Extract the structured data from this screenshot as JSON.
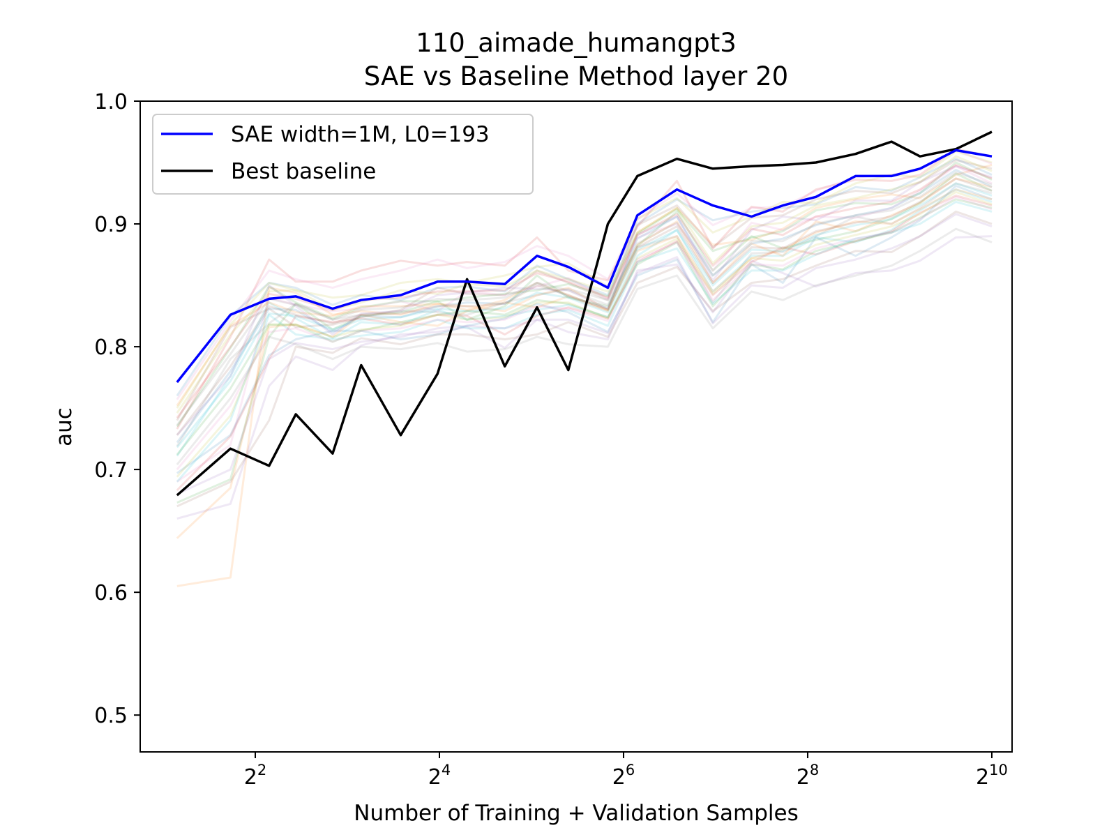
{
  "chart_data": {
    "type": "line",
    "title": "110_aimade_humangpt3",
    "subtitle": "SAE vs Baseline Method layer 20",
    "xlabel": "Number of Training + Validation Samples",
    "ylabel": "auc",
    "xscale": "log2",
    "xlim_log2": [
      0.75,
      10.22
    ],
    "ylim": [
      0.47,
      1.0
    ],
    "x_ticks": [
      {
        "base": "2",
        "exp": "2",
        "log2": 2
      },
      {
        "base": "2",
        "exp": "4",
        "log2": 4
      },
      {
        "base": "2",
        "exp": "6",
        "log2": 6
      },
      {
        "base": "2",
        "exp": "8",
        "log2": 8
      },
      {
        "base": "2",
        "exp": "10",
        "log2": 10
      }
    ],
    "y_ticks": [
      "0.5",
      "0.6",
      "0.7",
      "0.8",
      "0.9",
      "1.0"
    ],
    "x_log2": [
      1.15,
      1.73,
      2.15,
      2.44,
      2.84,
      3.15,
      3.58,
      3.98,
      4.3,
      4.71,
      5.06,
      5.4,
      5.83,
      6.15,
      6.58,
      6.97,
      7.39,
      7.73,
      8.09,
      8.52,
      8.91,
      9.22,
      9.61,
      10.0
    ],
    "series": [
      {
        "name": "SAE width=1M, L0=193",
        "color": "#0000ff",
        "values": [
          0.771,
          0.826,
          0.839,
          0.841,
          0.831,
          0.838,
          0.842,
          0.853,
          0.853,
          0.851,
          0.874,
          0.865,
          0.848,
          0.907,
          0.928,
          0.915,
          0.906,
          0.915,
          0.922,
          0.939,
          0.939,
          0.945,
          0.96,
          0.955
        ]
      },
      {
        "name": "Best baseline",
        "color": "#000000",
        "values": [
          0.679,
          0.717,
          0.703,
          0.745,
          0.713,
          0.785,
          0.728,
          0.778,
          0.855,
          0.784,
          0.832,
          0.781,
          0.9,
          0.939,
          0.953,
          0.945,
          0.947,
          0.948,
          0.95,
          0.957,
          0.967,
          0.955,
          0.961,
          0.975
        ]
      }
    ],
    "background_series": {
      "count": 30,
      "opacity": 0.15,
      "colors": [
        "#1f77b4",
        "#ff7f0e",
        "#2ca02c",
        "#d62728",
        "#9467bd",
        "#8c564b",
        "#e377c2",
        "#7f7f7f",
        "#bcbd22",
        "#17becf"
      ],
      "values": [
        [
          0.76,
          0.825,
          0.852,
          0.848,
          0.834,
          0.842,
          0.838,
          0.848,
          0.849,
          0.845,
          0.866,
          0.855,
          0.842,
          0.9,
          0.92,
          0.903,
          0.91,
          0.913,
          0.916,
          0.93,
          0.927,
          0.938,
          0.953,
          0.94
        ],
        [
          0.605,
          0.612,
          0.848,
          0.844,
          0.826,
          0.829,
          0.826,
          0.835,
          0.833,
          0.829,
          0.842,
          0.848,
          0.83,
          0.893,
          0.913,
          0.883,
          0.887,
          0.896,
          0.913,
          0.92,
          0.924,
          0.921,
          0.94,
          0.948
        ],
        [
          0.673,
          0.692,
          0.808,
          0.835,
          0.814,
          0.825,
          0.828,
          0.837,
          0.822,
          0.833,
          0.858,
          0.84,
          0.833,
          0.882,
          0.91,
          0.862,
          0.89,
          0.88,
          0.887,
          0.894,
          0.904,
          0.917,
          0.941,
          0.927
        ],
        [
          0.733,
          0.808,
          0.871,
          0.853,
          0.853,
          0.862,
          0.87,
          0.866,
          0.869,
          0.866,
          0.889,
          0.862,
          0.854,
          0.898,
          0.935,
          0.88,
          0.914,
          0.91,
          0.928,
          0.936,
          0.935,
          0.94,
          0.961,
          0.955
        ],
        [
          0.66,
          0.672,
          0.768,
          0.792,
          0.781,
          0.801,
          0.81,
          0.812,
          0.816,
          0.799,
          0.822,
          0.812,
          0.806,
          0.862,
          0.867,
          0.828,
          0.87,
          0.86,
          0.849,
          0.86,
          0.862,
          0.87,
          0.889,
          0.89
        ],
        [
          0.74,
          0.816,
          0.831,
          0.816,
          0.818,
          0.824,
          0.83,
          0.848,
          0.843,
          0.842,
          0.862,
          0.852,
          0.838,
          0.899,
          0.915,
          0.881,
          0.905,
          0.907,
          0.92,
          0.927,
          0.925,
          0.934,
          0.952,
          0.945
        ],
        [
          0.69,
          0.72,
          0.84,
          0.834,
          0.829,
          0.831,
          0.837,
          0.829,
          0.845,
          0.842,
          0.849,
          0.856,
          0.839,
          0.889,
          0.9,
          0.862,
          0.901,
          0.895,
          0.906,
          0.905,
          0.913,
          0.927,
          0.947,
          0.933
        ],
        [
          0.719,
          0.79,
          0.819,
          0.835,
          0.822,
          0.826,
          0.829,
          0.828,
          0.826,
          0.836,
          0.842,
          0.847,
          0.838,
          0.881,
          0.89,
          0.836,
          0.876,
          0.877,
          0.89,
          0.906,
          0.9,
          0.913,
          0.933,
          0.925
        ],
        [
          0.75,
          0.818,
          0.852,
          0.846,
          0.84,
          0.842,
          0.852,
          0.855,
          0.852,
          0.858,
          0.865,
          0.868,
          0.849,
          0.904,
          0.921,
          0.893,
          0.906,
          0.918,
          0.917,
          0.933,
          0.94,
          0.938,
          0.959,
          0.95
        ],
        [
          0.711,
          0.776,
          0.836,
          0.823,
          0.807,
          0.82,
          0.818,
          0.83,
          0.822,
          0.825,
          0.83,
          0.834,
          0.824,
          0.874,
          0.895,
          0.845,
          0.874,
          0.874,
          0.889,
          0.885,
          0.895,
          0.911,
          0.928,
          0.918
        ],
        [
          0.697,
          0.728,
          0.793,
          0.806,
          0.813,
          0.813,
          0.806,
          0.81,
          0.817,
          0.823,
          0.835,
          0.828,
          0.812,
          0.858,
          0.871,
          0.82,
          0.867,
          0.852,
          0.889,
          0.874,
          0.889,
          0.903,
          0.931,
          0.92
        ],
        [
          0.644,
          0.685,
          0.816,
          0.818,
          0.808,
          0.826,
          0.82,
          0.817,
          0.829,
          0.836,
          0.832,
          0.841,
          0.829,
          0.883,
          0.902,
          0.852,
          0.884,
          0.874,
          0.902,
          0.894,
          0.907,
          0.917,
          0.937,
          0.93
        ],
        [
          0.735,
          0.799,
          0.849,
          0.836,
          0.823,
          0.832,
          0.837,
          0.837,
          0.84,
          0.843,
          0.846,
          0.851,
          0.841,
          0.892,
          0.912,
          0.878,
          0.889,
          0.894,
          0.911,
          0.917,
          0.916,
          0.925,
          0.95,
          0.936
        ],
        [
          0.683,
          0.727,
          0.79,
          0.825,
          0.82,
          0.823,
          0.818,
          0.826,
          0.825,
          0.81,
          0.825,
          0.832,
          0.823,
          0.869,
          0.886,
          0.842,
          0.869,
          0.881,
          0.875,
          0.886,
          0.894,
          0.909,
          0.923,
          0.915
        ],
        [
          0.728,
          0.776,
          0.85,
          0.833,
          0.81,
          0.827,
          0.829,
          0.842,
          0.844,
          0.848,
          0.847,
          0.846,
          0.831,
          0.891,
          0.906,
          0.854,
          0.895,
          0.906,
          0.903,
          0.919,
          0.919,
          0.934,
          0.947,
          0.938
        ],
        [
          0.67,
          0.69,
          0.74,
          0.8,
          0.795,
          0.807,
          0.802,
          0.81,
          0.81,
          0.806,
          0.81,
          0.82,
          0.808,
          0.852,
          0.865,
          0.829,
          0.852,
          0.855,
          0.866,
          0.878,
          0.877,
          0.89,
          0.91,
          0.9
        ],
        [
          0.757,
          0.821,
          0.862,
          0.855,
          0.848,
          0.855,
          0.862,
          0.871,
          0.864,
          0.869,
          0.882,
          0.874,
          0.855,
          0.904,
          0.925,
          0.899,
          0.913,
          0.914,
          0.927,
          0.938,
          0.94,
          0.944,
          0.96,
          0.949
        ],
        [
          0.704,
          0.758,
          0.808,
          0.802,
          0.79,
          0.8,
          0.798,
          0.803,
          0.796,
          0.798,
          0.808,
          0.802,
          0.8,
          0.847,
          0.858,
          0.815,
          0.845,
          0.838,
          0.85,
          0.858,
          0.866,
          0.878,
          0.896,
          0.885
        ],
        [
          0.746,
          0.81,
          0.845,
          0.846,
          0.83,
          0.836,
          0.846,
          0.843,
          0.851,
          0.849,
          0.862,
          0.855,
          0.845,
          0.893,
          0.913,
          0.868,
          0.898,
          0.901,
          0.915,
          0.921,
          0.928,
          0.934,
          0.955,
          0.943
        ],
        [
          0.69,
          0.74,
          0.826,
          0.81,
          0.806,
          0.809,
          0.812,
          0.822,
          0.815,
          0.815,
          0.826,
          0.83,
          0.817,
          0.869,
          0.88,
          0.835,
          0.862,
          0.862,
          0.875,
          0.888,
          0.893,
          0.9,
          0.918,
          0.91
        ],
        [
          0.722,
          0.78,
          0.831,
          0.83,
          0.812,
          0.825,
          0.824,
          0.833,
          0.836,
          0.835,
          0.852,
          0.841,
          0.831,
          0.888,
          0.906,
          0.858,
          0.884,
          0.888,
          0.899,
          0.907,
          0.913,
          0.925,
          0.944,
          0.93
        ],
        [
          0.752,
          0.817,
          0.836,
          0.828,
          0.825,
          0.833,
          0.833,
          0.835,
          0.83,
          0.838,
          0.852,
          0.842,
          0.83,
          0.878,
          0.89,
          0.845,
          0.872,
          0.879,
          0.893,
          0.902,
          0.9,
          0.912,
          0.928,
          0.92
        ],
        [
          0.712,
          0.766,
          0.818,
          0.818,
          0.804,
          0.813,
          0.82,
          0.826,
          0.829,
          0.826,
          0.838,
          0.835,
          0.824,
          0.867,
          0.885,
          0.833,
          0.867,
          0.863,
          0.878,
          0.886,
          0.893,
          0.905,
          0.92,
          0.913
        ],
        [
          0.742,
          0.8,
          0.843,
          0.839,
          0.83,
          0.838,
          0.84,
          0.845,
          0.845,
          0.846,
          0.86,
          0.853,
          0.84,
          0.891,
          0.908,
          0.866,
          0.896,
          0.891,
          0.906,
          0.913,
          0.918,
          0.928,
          0.948,
          0.937
        ],
        [
          0.68,
          0.7,
          0.79,
          0.803,
          0.798,
          0.804,
          0.808,
          0.815,
          0.817,
          0.815,
          0.822,
          0.822,
          0.811,
          0.86,
          0.873,
          0.819,
          0.85,
          0.848,
          0.864,
          0.871,
          0.88,
          0.89,
          0.908,
          0.898
        ],
        [
          0.728,
          0.784,
          0.833,
          0.826,
          0.819,
          0.826,
          0.827,
          0.833,
          0.833,
          0.835,
          0.85,
          0.842,
          0.83,
          0.881,
          0.898,
          0.852,
          0.881,
          0.88,
          0.894,
          0.901,
          0.906,
          0.918,
          0.937,
          0.927
        ],
        [
          0.7,
          0.752,
          0.812,
          0.815,
          0.804,
          0.813,
          0.815,
          0.822,
          0.82,
          0.822,
          0.833,
          0.831,
          0.821,
          0.871,
          0.885,
          0.838,
          0.867,
          0.866,
          0.88,
          0.888,
          0.893,
          0.904,
          0.922,
          0.912
        ],
        [
          0.736,
          0.794,
          0.839,
          0.834,
          0.822,
          0.83,
          0.832,
          0.839,
          0.838,
          0.84,
          0.852,
          0.846,
          0.834,
          0.884,
          0.901,
          0.858,
          0.886,
          0.886,
          0.9,
          0.907,
          0.911,
          0.922,
          0.942,
          0.932
        ],
        [
          0.694,
          0.744,
          0.818,
          0.818,
          0.808,
          0.814,
          0.817,
          0.826,
          0.822,
          0.824,
          0.836,
          0.836,
          0.823,
          0.872,
          0.888,
          0.843,
          0.872,
          0.87,
          0.883,
          0.891,
          0.898,
          0.908,
          0.926,
          0.916
        ],
        [
          0.718,
          0.772,
          0.827,
          0.825,
          0.814,
          0.822,
          0.824,
          0.831,
          0.829,
          0.831,
          0.844,
          0.84,
          0.828,
          0.879,
          0.895,
          0.85,
          0.879,
          0.878,
          0.891,
          0.899,
          0.904,
          0.915,
          0.933,
          0.923
        ]
      ]
    },
    "legend": {
      "position": "top-left",
      "entries": [
        "SAE width=1M, L0=193",
        "Best baseline"
      ]
    }
  }
}
